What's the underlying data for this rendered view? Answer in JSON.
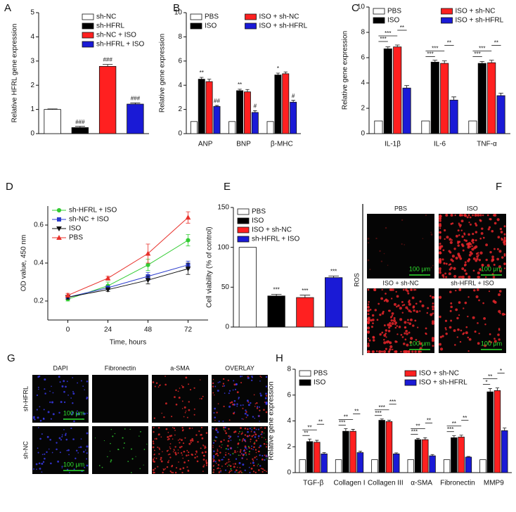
{
  "chart_data": [
    {
      "type": "bar",
      "panel": "A",
      "ylabel": "Relative HFRL gene expression",
      "categories": [
        "sh-NC",
        "sh-HFRL",
        "sh-NC + ISO",
        "sh-HFRL + ISO"
      ],
      "values": [
        1,
        0.25,
        2.78,
        1.22
      ],
      "errors": [
        0.02,
        0.05,
        0.08,
        0.05
      ],
      "sig": [
        null,
        "###",
        "###",
        "###"
      ],
      "colors": [
        "#ffffff",
        "#000000",
        "#ff2020",
        "#1a1ad6"
      ],
      "category_labels": false,
      "legend": "upper right",
      "ylim": [
        0,
        5
      ],
      "yticks": [
        0,
        1,
        2,
        3,
        4,
        5
      ]
    },
    {
      "type": "bar",
      "panel": "B",
      "ylabel": "Relative gene expression",
      "categories": [
        "ANP",
        "BNP",
        "β-MHC"
      ],
      "series": [
        {
          "name": "PBS",
          "color": "#ffffff",
          "values": [
            1,
            1,
            1
          ],
          "errors": [
            null,
            null,
            null
          ]
        },
        {
          "name": "ISO",
          "color": "#000000",
          "values": [
            4.5,
            3.55,
            4.85
          ],
          "errors": [
            0.15,
            0.12,
            0.15
          ],
          "sig": [
            "**",
            "**",
            "*"
          ]
        },
        {
          "name": "ISO + sh-NC",
          "color": "#ff2020",
          "values": [
            4.3,
            3.45,
            4.95
          ],
          "errors": [
            0.2,
            0.2,
            0.15
          ]
        },
        {
          "name": "ISO + sh-HFRL",
          "color": "#1a1ad6",
          "values": [
            2.25,
            1.75,
            2.6
          ],
          "errors": [
            0.08,
            0.15,
            0.15
          ],
          "sig": [
            "##",
            "#",
            "#"
          ]
        }
      ],
      "legend": "upper left",
      "legend_columns": 2,
      "ylim": [
        0,
        10
      ],
      "yticks": [
        0,
        2,
        4,
        6,
        8,
        10
      ]
    },
    {
      "type": "bar",
      "panel": "C",
      "ylabel": "Relative gene expression",
      "categories": [
        "IL-1β",
        "IL-6",
        "TNF-α"
      ],
      "series": [
        {
          "name": "PBS",
          "color": "#ffffff",
          "values": [
            1,
            1,
            1
          ],
          "errors": [
            null,
            null,
            null
          ]
        },
        {
          "name": "ISO",
          "color": "#000000",
          "values": [
            6.7,
            5.65,
            5.55
          ],
          "errors": [
            0.15,
            0.15,
            0.15
          ]
        },
        {
          "name": "ISO + sh-NC",
          "color": "#ff2020",
          "values": [
            6.85,
            5.55,
            5.6
          ],
          "errors": [
            0.15,
            0.2,
            0.2
          ]
        },
        {
          "name": "ISO + sh-HFRL",
          "color": "#1a1ad6",
          "values": [
            3.6,
            2.65,
            3.0
          ],
          "errors": [
            0.2,
            0.25,
            0.2
          ]
        }
      ],
      "brackets": [
        [
          "***",
          "***",
          "**"
        ],
        [
          "***",
          "***",
          "**"
        ],
        [
          "***",
          "***",
          "**"
        ]
      ],
      "legend": "upper left",
      "legend_columns": 2,
      "ylim": [
        0,
        10
      ],
      "yticks": [
        0,
        2,
        4,
        6,
        8,
        10
      ]
    },
    {
      "type": "line",
      "panel": "D",
      "ylabel": "OD value, 450 nm",
      "xlabel": "Time, hours",
      "x": [
        0,
        24,
        48,
        72
      ],
      "series": [
        {
          "name": "sh-HFRL + ISO",
          "color": "#33cc33",
          "marker": "circle",
          "values": [
            0.21,
            0.28,
            0.39,
            0.52
          ],
          "errors": [
            0.01,
            0.02,
            0.03,
            0.03
          ]
        },
        {
          "name": "sh-NC + ISO",
          "color": "#2b3ccc",
          "marker": "square",
          "values": [
            0.22,
            0.27,
            0.33,
            0.39
          ],
          "errors": [
            0.01,
            0.01,
            0.02,
            0.02
          ]
        },
        {
          "name": "ISO",
          "color": "#111111",
          "marker": "triangle-down",
          "values": [
            0.22,
            0.26,
            0.31,
            0.37
          ],
          "errors": [
            0.01,
            0.01,
            0.02,
            0.03
          ]
        },
        {
          "name": "PBS",
          "color": "#e8302a",
          "marker": "triangle-up",
          "values": [
            0.23,
            0.32,
            0.45,
            0.64
          ],
          "errors": [
            0.01,
            0.01,
            0.05,
            0.03
          ]
        }
      ],
      "legend": "upper left",
      "xlim": [
        -12,
        84
      ],
      "xticks": [
        0,
        24,
        48,
        72
      ],
      "ylim": [
        0.1,
        0.7
      ],
      "yticks": [
        0.2,
        0.4,
        0.6
      ]
    },
    {
      "type": "bar",
      "panel": "E",
      "ylabel": "Cell viability (% of control)",
      "categories": [
        "PBS",
        "ISO",
        "ISO + sh-NC",
        "sh-HFRL + ISO"
      ],
      "values": [
        100,
        39,
        37,
        62
      ],
      "errors": [
        null,
        2,
        3,
        2
      ],
      "sig": [
        null,
        "***",
        "***",
        "***"
      ],
      "colors": [
        "#ffffff",
        "#000000",
        "#ff2020",
        "#1a1ad6"
      ],
      "category_labels": false,
      "legend": "upper left",
      "ylim": [
        0,
        150
      ],
      "yticks": [
        0,
        50,
        100,
        150
      ]
    },
    {
      "type": "bar",
      "panel": "H",
      "ylabel": "Relative gene expression",
      "categories": [
        "TGF-β",
        "Collagen I",
        "Collagen III",
        "α-SMA",
        "Fibronectin",
        "MMP9"
      ],
      "series": [
        {
          "name": "PBS",
          "color": "#ffffff",
          "values": [
            1,
            1,
            1,
            1,
            1,
            1
          ],
          "errors": [
            null,
            null,
            null,
            null,
            null,
            null
          ]
        },
        {
          "name": "ISO",
          "color": "#000000",
          "values": [
            2.4,
            3.2,
            4.05,
            2.55,
            2.7,
            6.25
          ],
          "errors": [
            0.2,
            0.2,
            0.1,
            0.1,
            0.15,
            0.25
          ]
        },
        {
          "name": "ISO + sh-NC",
          "color": "#ff2020",
          "values": [
            2.35,
            3.2,
            3.95,
            2.55,
            2.75,
            6.35
          ],
          "errors": [
            0.15,
            0.15,
            0.1,
            0.15,
            0.15,
            0.2
          ]
        },
        {
          "name": "ISO + sh-HFRL",
          "color": "#1a1ad6",
          "values": [
            1.45,
            1.55,
            1.45,
            1.3,
            1.2,
            3.25
          ],
          "errors": [
            0.1,
            0.1,
            0.08,
            0.1,
            0.05,
            0.2
          ]
        }
      ],
      "brackets": [
        [
          "**",
          "**",
          "**"
        ],
        [
          "***",
          "**",
          "**"
        ],
        [
          "***",
          "***",
          "***"
        ],
        [
          "***",
          "**",
          "**"
        ],
        [
          "***",
          "**",
          "**"
        ],
        [
          "*",
          "**",
          "*"
        ]
      ],
      "legend": "upper left",
      "legend_columns": 2,
      "ylim": [
        0,
        8
      ],
      "yticks": [
        0,
        2,
        4,
        6,
        8
      ]
    }
  ],
  "image_panels": {
    "F": {
      "panel": "F",
      "titles": [
        "PBS",
        "ISO",
        "ISO + sh-NC",
        "sh-HFRL + ISO"
      ],
      "side_label": "ROS",
      "scale_bar": "100 μm"
    },
    "G": {
      "panel": "G",
      "columns": [
        "DAPI",
        "Fibronectin",
        "a-SMA",
        "OVERLAY"
      ],
      "rows": [
        "sh-HFRL",
        "sh-NC"
      ],
      "scale_bar": "100 μm"
    }
  }
}
